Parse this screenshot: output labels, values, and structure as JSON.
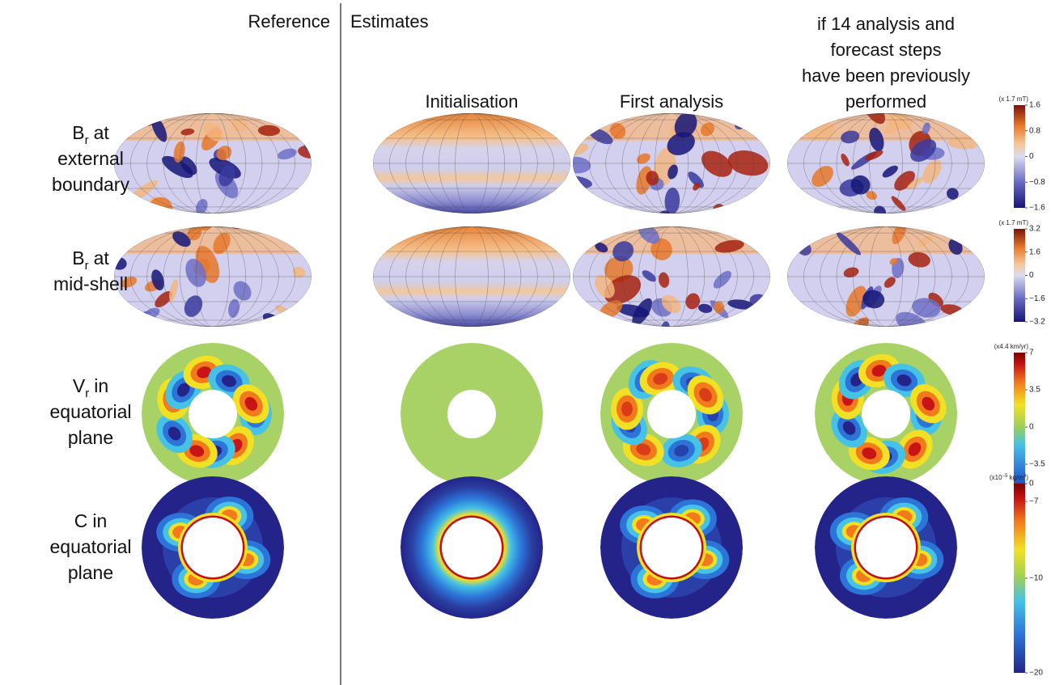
{
  "header": {
    "reference": "Reference",
    "estimates": "Estimates",
    "columns": [
      {
        "lines": [
          "Initialisation"
        ]
      },
      {
        "lines": [
          "First analysis"
        ]
      },
      {
        "lines": [
          "if 14 analysis and",
          "forecast steps",
          "have been previously",
          "performed"
        ]
      }
    ]
  },
  "rows": [
    {
      "symbol": "B",
      "subscript": "r",
      "lines": [
        "at",
        "external",
        "boundary"
      ]
    },
    {
      "symbol": "B",
      "subscript": "r",
      "lines": [
        "at",
        "mid-shell"
      ]
    },
    {
      "symbol": "V",
      "subscript": "r",
      "lines": [
        "in",
        "equatorial",
        "plane"
      ]
    },
    {
      "symbol": "C",
      "lines": [
        "in",
        "equatorial",
        "plane"
      ]
    }
  ],
  "colorbars": [
    {
      "unit": [
        "(x 1.7 mT)"
      ],
      "ylim": [
        -1.6,
        1.6
      ],
      "ticks": [
        1.6,
        0.8,
        0,
        {
          "value": -0.8,
          "label": "−0.8"
        },
        {
          "value": -1.6,
          "label": "−1.6"
        }
      ]
    },
    {
      "unit": [
        "(x 1.7 mT)"
      ],
      "ylim": [
        -3.2,
        3.2
      ],
      "ticks": [
        3.2,
        1.6,
        0,
        {
          "value": -1.6,
          "label": "−1.6"
        },
        {
          "value": -3.2,
          "label": "−3.2"
        }
      ]
    },
    {
      "unit": [
        "(x4.4 km/yr)"
      ],
      "ylim": [
        -7,
        7
      ],
      "ticks": [
        7,
        3.5,
        0,
        {
          "value": -3.5,
          "label": "−3.5"
        },
        {
          "value": -7,
          "label": "−7"
        }
      ]
    },
    {
      "unit": [
        "(x10",
        "−5",
        " kg/m",
        "3",
        ")"
      ],
      "ylim": [
        -20,
        0
      ],
      "ticks": [
        0,
        {
          "value": -10,
          "label": "−10"
        },
        {
          "value": -20,
          "label": "−20"
        }
      ]
    }
  ]
}
